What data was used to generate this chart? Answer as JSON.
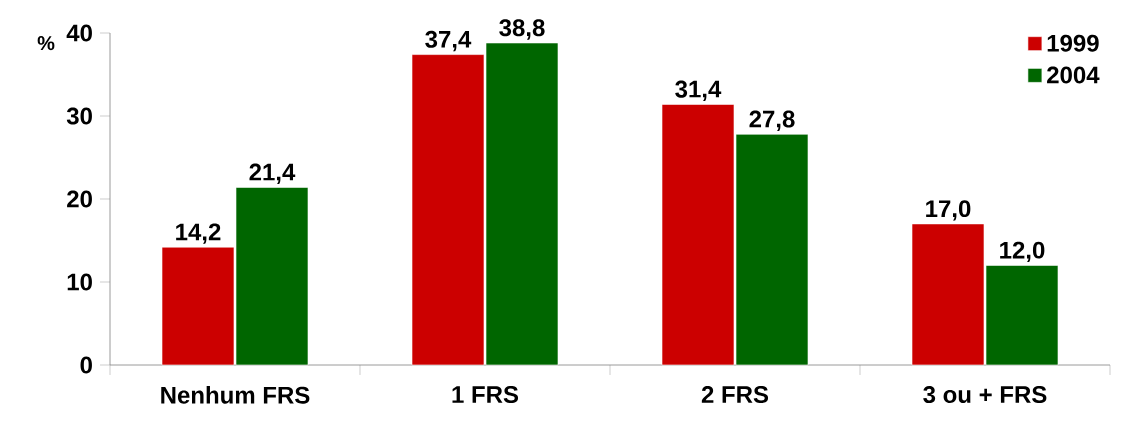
{
  "chart_data": {
    "type": "bar",
    "ylabel": "%",
    "categories": [
      "Nenhum FRS",
      "1 FRS",
      "2 FRS",
      "3 ou + FRS"
    ],
    "series": [
      {
        "name": "1999",
        "color": "#cc0000",
        "values": [
          14.2,
          37.4,
          31.4,
          17.0
        ],
        "value_labels": [
          "14,2",
          "37,4",
          "31,4",
          "17,0"
        ]
      },
      {
        "name": "2004",
        "color": "#006600",
        "values": [
          21.4,
          38.8,
          27.8,
          12.0
        ],
        "value_labels": [
          "21,4",
          "38,8",
          "27,8",
          "12,0"
        ]
      }
    ],
    "ylim": [
      0,
      40
    ],
    "yticks": [
      0,
      10,
      20,
      30,
      40
    ],
    "legend": "top right",
    "grid": false
  }
}
